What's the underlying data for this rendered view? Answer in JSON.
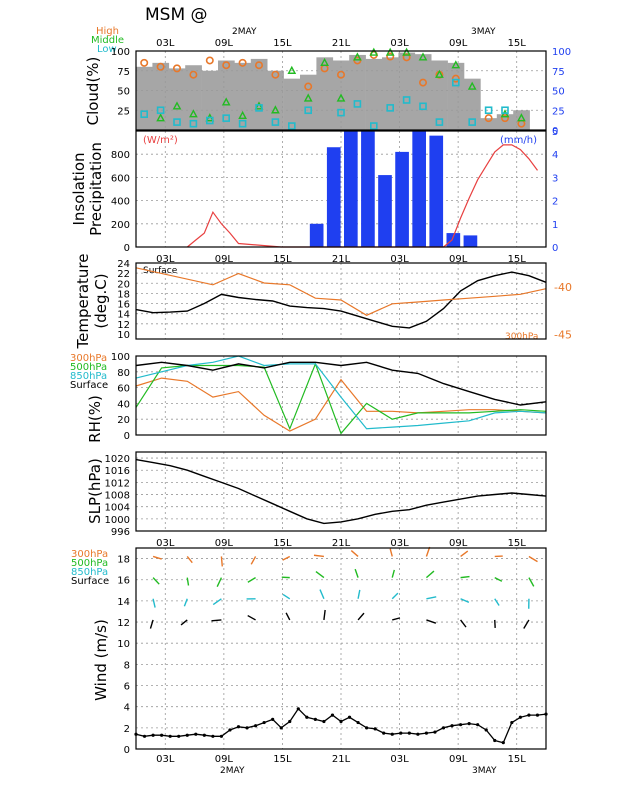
{
  "header": {
    "title": "MSM  @"
  },
  "colors": {
    "orange": "#e8782a",
    "green": "#22bb22",
    "cyan": "#22bbcc",
    "blue": "#1f3ff0",
    "red": "#e84040",
    "gray": "#a6a6a6",
    "black": "#000000"
  },
  "x_axis": {
    "ticks": [
      "03L",
      "09L",
      "15L",
      "21L",
      "03L",
      "09L",
      "15L"
    ],
    "day_labels": [
      "2MAY",
      "3MAY"
    ]
  },
  "chart_data": [
    {
      "type": "bar",
      "ylabel": "Cloud(%)",
      "ylim": [
        0,
        100
      ],
      "left_ticks": [
        "100",
        "75",
        "50",
        "25"
      ],
      "right_ticks": [
        "100",
        "75",
        "50",
        "25",
        "0"
      ],
      "legend": [
        "High",
        "Middle",
        "Low"
      ],
      "x": [
        0,
        1,
        2,
        3,
        4,
        5,
        6,
        7,
        8,
        9,
        10,
        11,
        12,
        13,
        14,
        15,
        16,
        17,
        18,
        19,
        20,
        21,
        22,
        23,
        24
      ],
      "series": [
        {
          "name": "Total",
          "values": [
            80,
            85,
            78,
            82,
            75,
            88,
            85,
            90,
            75,
            65,
            70,
            92,
            88,
            95,
            90,
            92,
            98,
            96,
            88,
            85,
            65,
            15,
            20,
            25,
            0
          ]
        },
        {
          "name": "High",
          "values": [
            85,
            80,
            78,
            70,
            88,
            82,
            85,
            82,
            70,
            null,
            55,
            78,
            70,
            88,
            95,
            93,
            92,
            60,
            70,
            65,
            null,
            15,
            15,
            8,
            null
          ]
        },
        {
          "name": "Middle",
          "values": [
            null,
            15,
            30,
            20,
            15,
            35,
            18,
            30,
            25,
            75,
            40,
            85,
            40,
            92,
            98,
            98,
            98,
            92,
            70,
            82,
            55,
            null,
            20,
            15,
            null
          ]
        },
        {
          "name": "Low",
          "values": [
            20,
            25,
            10,
            8,
            12,
            15,
            8,
            28,
            10,
            5,
            25,
            null,
            22,
            33,
            5,
            28,
            38,
            30,
            10,
            60,
            10,
            25,
            25,
            null,
            null
          ]
        }
      ]
    },
    {
      "type": "bar",
      "ylabel": "Insolation Precipitation",
      "unit_left": "(W/m²)",
      "unit_right": "(mm/h)",
      "left_ticks": [
        "800",
        "600",
        "400",
        "200",
        "0"
      ],
      "right_ticks": [
        "5",
        "4",
        "3",
        "2",
        "1",
        "0"
      ],
      "ylim": [
        0,
        5
      ],
      "precip_x": [
        11,
        12,
        13,
        14,
        15,
        16,
        17,
        18,
        19,
        20
      ],
      "precip": [
        1.0,
        4.3,
        5.0,
        5.0,
        3.1,
        4.1,
        5.3,
        4.8,
        0.6,
        0.5
      ],
      "insolation_x": [
        6,
        7,
        8,
        9,
        10,
        11,
        12,
        17,
        18,
        20,
        21,
        36,
        37,
        38,
        39,
        40,
        41,
        42,
        43,
        44,
        45,
        46,
        47
      ],
      "insolation": [
        0,
        60,
        120,
        300,
        200,
        120,
        30,
        0,
        0,
        0,
        0,
        0,
        60,
        250,
        420,
        580,
        700,
        820,
        880,
        880,
        840,
        760,
        660
      ]
    },
    {
      "type": "line",
      "ylabel": "Temperature (deg.C)",
      "left_ticks": [
        "24",
        "22",
        "20",
        "18",
        "16",
        "14",
        "12",
        "10"
      ],
      "right_ticks": [
        "-40",
        "-45"
      ],
      "series_names": [
        "Surface",
        "300hPa"
      ],
      "surface_x": [
        0,
        2,
        4,
        6,
        8,
        10,
        12,
        14,
        16,
        18,
        20,
        22,
        24,
        26,
        28,
        30,
        32,
        34,
        36,
        38,
        40,
        42,
        44,
        46,
        48
      ],
      "surface": [
        14.8,
        14.2,
        14.3,
        14.5,
        16.0,
        17.8,
        17.2,
        16.8,
        16.5,
        15.5,
        15.2,
        15.0,
        14.5,
        13.5,
        12.5,
        11.5,
        11.2,
        12.5,
        15.0,
        18.5,
        20.5,
        21.5,
        22.2,
        21.5,
        20.2
      ],
      "upper_x": [
        0,
        9,
        12,
        15,
        18,
        21,
        24,
        27,
        30,
        33,
        36,
        39,
        42,
        45,
        48
      ],
      "upper": [
        -38.0,
        -39.8,
        -38.6,
        -39.6,
        -39.8,
        -41.2,
        -41.4,
        -43.0,
        -41.8,
        -41.6,
        -41.4,
        -41.2,
        -41.0,
        -40.8,
        -40.2
      ]
    },
    {
      "type": "line",
      "ylabel": "RH(%)",
      "ylim": [
        0,
        100
      ],
      "left_ticks": [
        "100",
        "80",
        "60",
        "40",
        "20",
        "0"
      ],
      "series_names": [
        "300hPa",
        "500hPa",
        "850hPa",
        "Surface"
      ],
      "x3": [
        0,
        3,
        6,
        9,
        12,
        15,
        18,
        21,
        24,
        27,
        30,
        33,
        36,
        39,
        42,
        45,
        48
      ],
      "surface_x": [
        0,
        3,
        6,
        9,
        12,
        15,
        18,
        21,
        24,
        27,
        30,
        33,
        36,
        39,
        42,
        45,
        48
      ],
      "surface": [
        88,
        92,
        88,
        82,
        90,
        85,
        92,
        92,
        88,
        92,
        82,
        78,
        65,
        55,
        45,
        38,
        42
      ],
      "rh300": [
        62,
        72,
        68,
        48,
        55,
        25,
        5,
        20,
        70,
        30,
        30,
        28,
        30,
        32,
        32,
        30,
        28
      ],
      "rh500": [
        35,
        85,
        88,
        88,
        88,
        86,
        8,
        90,
        2,
        40,
        20,
        28,
        28,
        28,
        30,
        32,
        30
      ],
      "rh850": [
        72,
        80,
        88,
        92,
        100,
        88,
        90,
        90,
        48,
        8,
        10,
        12,
        15,
        18,
        28,
        30,
        28
      ]
    },
    {
      "type": "line",
      "ylabel": "SLP(hPa)",
      "left_ticks": [
        "1020",
        "1016",
        "1012",
        "1008",
        "1004",
        "1000",
        "996"
      ],
      "ylim": [
        996,
        1022
      ],
      "x": [
        0,
        2,
        4,
        6,
        8,
        10,
        12,
        14,
        16,
        18,
        20,
        22,
        24,
        26,
        28,
        30,
        32,
        34,
        36,
        38,
        40,
        42,
        44,
        46,
        48
      ],
      "values": [
        1019.5,
        1018.5,
        1017.5,
        1016,
        1014,
        1012,
        1010,
        1007.5,
        1005,
        1002.5,
        1000,
        998.5,
        999,
        1000,
        1001.5,
        1002.5,
        1003,
        1004.5,
        1005.5,
        1006.5,
        1007.5,
        1008,
        1008.5,
        1008,
        1007.5
      ]
    },
    {
      "type": "line",
      "ylabel": "Wind (m/s)",
      "left_ticks": [
        "18",
        "16",
        "14",
        "12",
        "10",
        "8",
        "6",
        "4",
        "2",
        "0"
      ],
      "ylim": [
        0,
        19
      ],
      "series_names": [
        "300hPa",
        "500hPa",
        "850hPa",
        "Surface"
      ],
      "x": [
        0,
        1,
        2,
        3,
        4,
        5,
        6,
        7,
        8,
        9,
        10,
        11,
        12,
        13,
        14,
        15,
        16,
        17,
        18,
        19,
        20,
        21,
        22,
        23,
        24,
        25,
        26,
        27,
        28,
        29,
        30,
        31,
        32,
        33,
        34,
        35,
        36,
        37,
        38,
        39,
        40,
        41,
        42,
        43,
        44,
        45,
        46,
        47,
        48
      ],
      "speed": [
        1.4,
        1.2,
        1.3,
        1.3,
        1.2,
        1.2,
        1.3,
        1.4,
        1.3,
        1.2,
        1.2,
        1.8,
        2.1,
        2.0,
        2.2,
        2.5,
        2.8,
        2.0,
        2.6,
        3.8,
        3.0,
        2.8,
        2.6,
        3.2,
        2.6,
        3.0,
        2.5,
        2.0,
        1.9,
        1.5,
        1.4,
        1.5,
        1.5,
        1.4,
        1.5,
        1.6,
        2.0,
        2.2,
        2.3,
        2.4,
        2.3,
        1.8,
        0.8,
        0.6,
        2.5,
        3.0,
        3.2,
        3.2,
        3.3
      ]
    }
  ]
}
